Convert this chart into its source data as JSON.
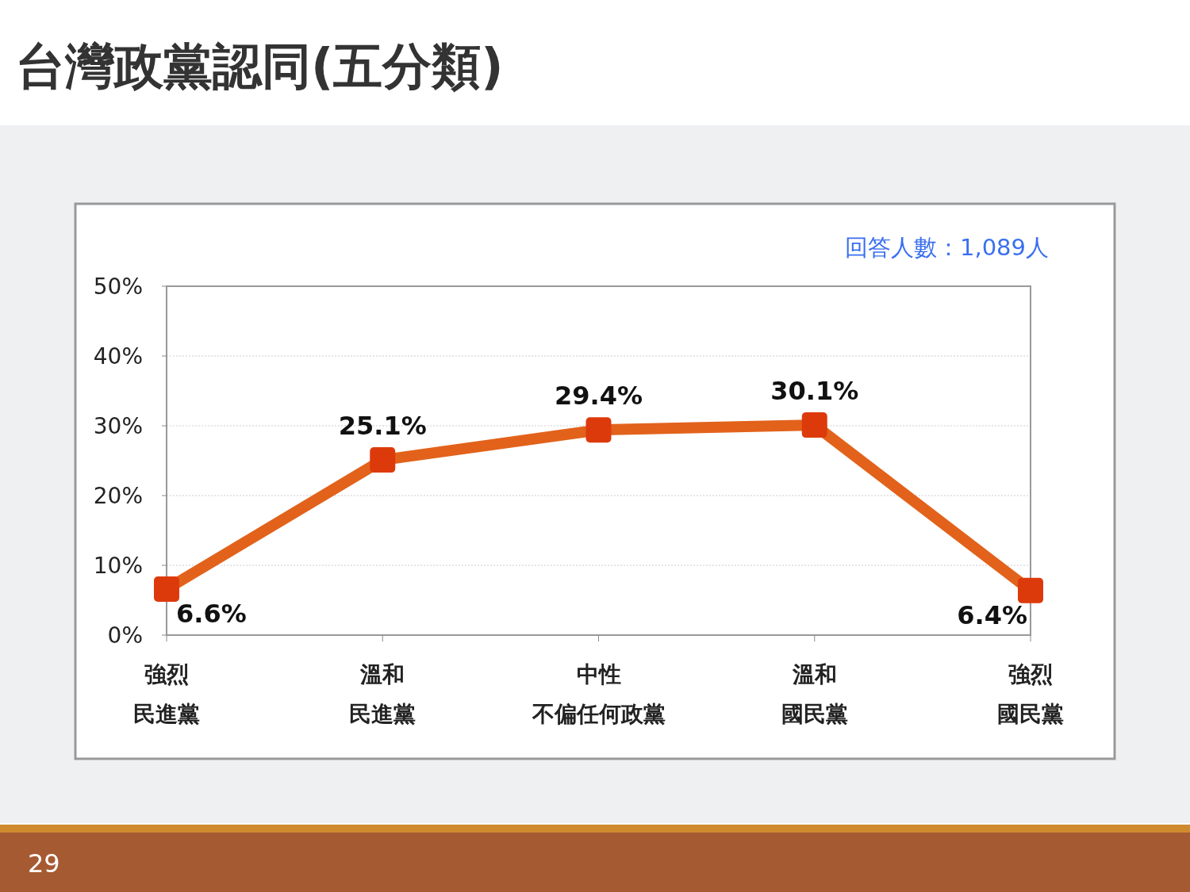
{
  "chart_data": {
    "type": "line",
    "title": "台灣政黨認同(五分類)",
    "annotations": [
      "回答人數：1,089人",
      "29"
    ],
    "categories": [
      "強烈民進黨",
      "溫和民進黨",
      "中性不偏任何政黨",
      "溫和國民黨",
      "強烈國民黨"
    ],
    "series": [
      {
        "color": "#e2621b",
        "values": [
          6.6,
          25.1,
          29.4,
          30.1,
          6.4
        ]
      }
    ],
    "ylim": [
      0,
      50
    ],
    "yticks": [
      {
        "value": 0,
        "label": "0%"
      },
      {
        "value": 10,
        "label": "10%"
      },
      {
        "value": 20,
        "label": "20%"
      },
      {
        "value": 30,
        "label": "30%"
      },
      {
        "value": 40,
        "label": "40%"
      },
      {
        "value": 50,
        "label": "50%"
      }
    ],
    "value_labels": [
      "6.6%",
      "25.1%",
      "29.4%",
      "30.1%",
      "6.4%"
    ],
    "grid": "y",
    "marker": "square",
    "line_style": "solid"
  }
}
